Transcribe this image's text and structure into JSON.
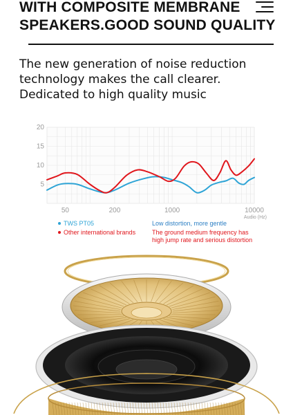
{
  "header": {
    "title_line1": "WITH COMPOSITE MEMBRANE",
    "title_line2": "SPEAKERS.GOOD SOUND QUALITY",
    "menu_icon": "menu-icon"
  },
  "description": {
    "line1": "The new generation of noise reduction",
    "line2": "technology makes the call clearer.",
    "line3": "Dedicated to high quality music"
  },
  "legend": {
    "series1": "TWS PT05",
    "series2": "Other international brands",
    "note1": "Low distortion, more gentle",
    "note2_line1": "The ground medium frequency has",
    "note2_line2": "high jump rate and serious distortion"
  },
  "colors": {
    "series1": "#2ea4d6",
    "series2": "#e0161c",
    "note1": "#2c7fc4",
    "note2": "#e0161c",
    "grid": "#e6e6e6",
    "axis_text": "#9a9a9a",
    "gold": "#c9a24a"
  },
  "chart_data": {
    "type": "line",
    "x_scale": "log",
    "xlim": [
      30,
      10000
    ],
    "ylim": [
      0,
      20
    ],
    "x_ticks": [
      50,
      200,
      1000,
      10000
    ],
    "y_ticks": [
      5,
      10,
      15,
      20
    ],
    "xlabel": "Audio (Hz)",
    "ylabel": "",
    "grid": true,
    "legend_position": "bottom-left",
    "series": [
      {
        "name": "TWS PT05",
        "color": "#2ea4d6",
        "x": [
          30,
          40,
          50,
          70,
          100,
          150,
          200,
          300,
          450,
          600,
          800,
          1000,
          1300,
          1600,
          2000,
          2500,
          3000,
          3700,
          4500,
          5500,
          6500,
          7500,
          8500,
          10000
        ],
        "y": [
          3.5,
          4.8,
          5.2,
          5.0,
          3.8,
          2.8,
          3.5,
          5.3,
          6.5,
          7.0,
          6.8,
          6.2,
          5.5,
          4.4,
          2.8,
          3.5,
          4.8,
          5.5,
          5.9,
          6.6,
          5.3,
          5.0,
          6.0,
          6.8
        ]
      },
      {
        "name": "Other international brands",
        "color": "#e0161c",
        "x": [
          30,
          40,
          50,
          70,
          100,
          130,
          160,
          200,
          280,
          380,
          500,
          700,
          900,
          1100,
          1400,
          1700,
          2100,
          2600,
          3200,
          3800,
          4500,
          5200,
          6000,
          7000,
          8500,
          10000
        ],
        "y": [
          6.2,
          7.2,
          8.0,
          7.6,
          5.0,
          3.4,
          2.8,
          4.2,
          7.4,
          8.8,
          8.3,
          7.0,
          5.8,
          6.6,
          9.8,
          10.9,
          10.4,
          8.0,
          6.0,
          8.0,
          11.2,
          8.8,
          7.4,
          8.2,
          9.8,
          11.7
        ]
      }
    ]
  },
  "illustration": {
    "name": "speaker-exploded-view"
  }
}
